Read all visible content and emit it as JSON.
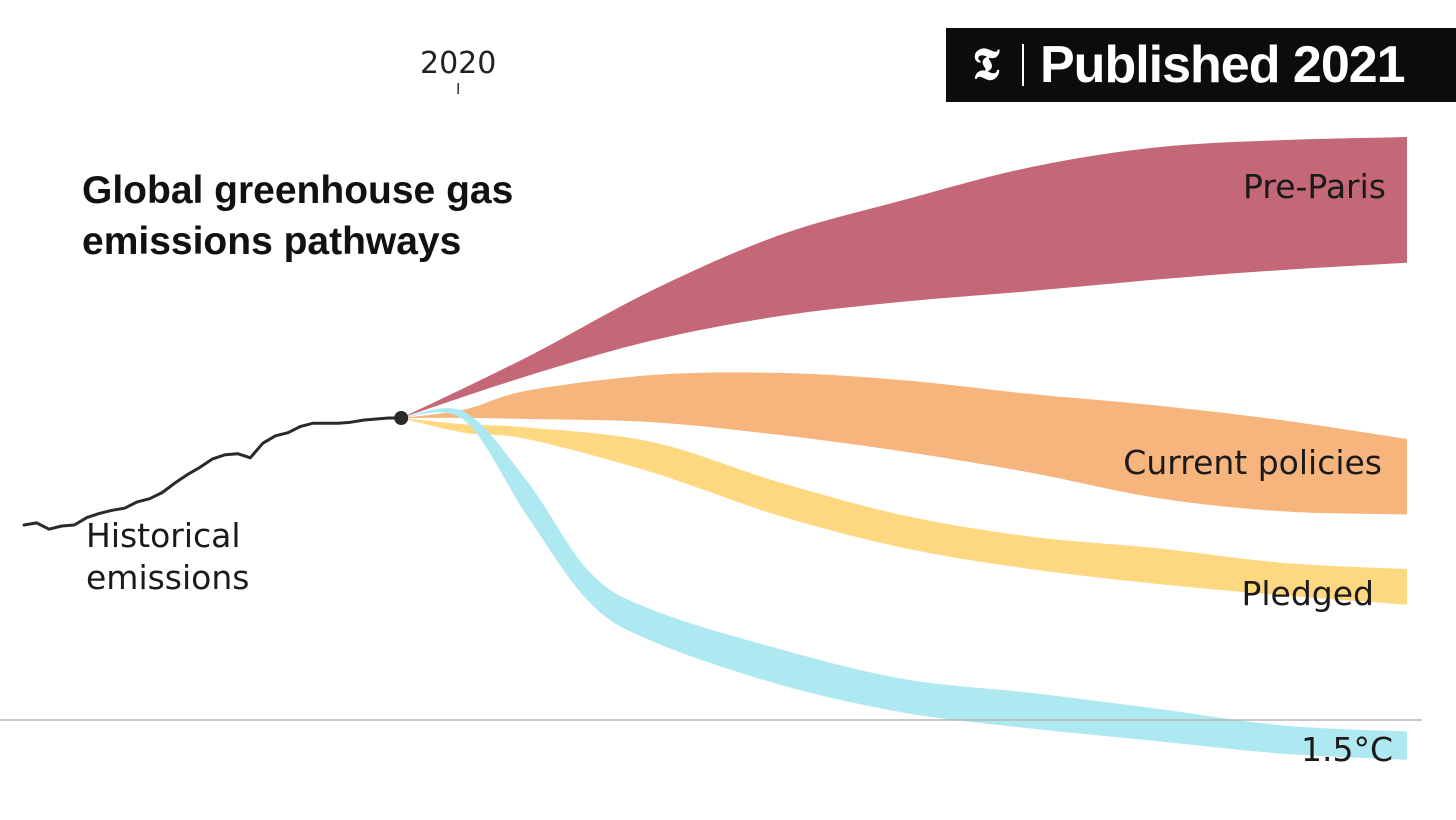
{
  "badge": {
    "logo": "𝕿",
    "text": "Published 2021"
  },
  "chart_data": {
    "type": "area",
    "title_lines": [
      "Global greenhouse gas",
      "emissions pathways"
    ],
    "x_tick": {
      "label": "2020",
      "value": 2020
    },
    "x_range": [
      1990,
      2100
    ],
    "historical": {
      "name": "Historical emissions",
      "label_lines": [
        "Historical",
        "emissions"
      ],
      "color": "#2a2a2a",
      "points": [
        [
          1990,
          38.6
        ],
        [
          1991,
          38.8
        ],
        [
          1992,
          38.2
        ],
        [
          1993,
          38.5
        ],
        [
          1994,
          38.6
        ],
        [
          1995,
          39.3
        ],
        [
          1996,
          39.7
        ],
        [
          1997,
          40.0
        ],
        [
          1998,
          40.2
        ],
        [
          1999,
          40.8
        ],
        [
          2000,
          41.1
        ],
        [
          2001,
          41.7
        ],
        [
          2002,
          42.6
        ],
        [
          2003,
          43.4
        ],
        [
          2004,
          44.1
        ],
        [
          2005,
          44.9
        ],
        [
          2006,
          45.3
        ],
        [
          2007,
          45.4
        ],
        [
          2008,
          45.0
        ],
        [
          2009,
          46.4
        ],
        [
          2010,
          47.1
        ],
        [
          2011,
          47.4
        ],
        [
          2012,
          48.0
        ],
        [
          2013,
          48.3
        ],
        [
          2014,
          48.3
        ],
        [
          2015,
          48.3
        ],
        [
          2016,
          48.4
        ],
        [
          2017,
          48.6
        ],
        [
          2018,
          48.7
        ],
        [
          2019,
          48.8
        ]
      ],
      "end_point": [
        2020,
        48.8
      ]
    },
    "series": [
      {
        "name": "Pre-Paris",
        "color": "#c46776",
        "x": [
          2020,
          2030,
          2040,
          2050,
          2060,
          2070,
          2080,
          2090,
          2100
        ],
        "low": [
          48.8,
          52.8,
          56.2,
          58.5,
          59.9,
          60.9,
          62.0,
          62.9,
          63.6
        ],
        "high": [
          48.8,
          54.6,
          61.0,
          66.2,
          69.6,
          72.7,
          74.6,
          75.3,
          75.6
        ]
      },
      {
        "name": "Current policies",
        "color": "#f5b57d",
        "x": [
          2020,
          2025,
          2030,
          2040,
          2050,
          2060,
          2070,
          2080,
          2090,
          2100
        ],
        "low": [
          48.8,
          48.8,
          48.7,
          48.4,
          47.2,
          45.6,
          43.6,
          41.2,
          39.9,
          39.6
        ],
        "high": [
          48.8,
          49.6,
          51.4,
          52.9,
          53.1,
          52.4,
          51.1,
          50.0,
          48.6,
          46.8
        ]
      },
      {
        "name": "Pledged",
        "color": "#fdd881",
        "x": [
          2020,
          2025,
          2030,
          2040,
          2050,
          2060,
          2070,
          2080,
          2090,
          2100
        ],
        "low": [
          48.8,
          47.4,
          46.8,
          43.6,
          39.5,
          36.4,
          34.4,
          33.0,
          31.9,
          31.0
        ],
        "high": [
          48.8,
          48.2,
          47.9,
          46.5,
          42.7,
          39.5,
          37.5,
          36.4,
          35.0,
          34.4
        ]
      },
      {
        "name": "1.5°C",
        "color": "#aee9f1",
        "x": [
          2020,
          2025,
          2030,
          2035,
          2040,
          2050,
          2060,
          2070,
          2080,
          2090,
          2100
        ],
        "low": [
          48.8,
          48.6,
          39.5,
          31.2,
          27.5,
          23.4,
          20.7,
          19.2,
          18.0,
          16.8,
          16.2
        ],
        "high": [
          48.8,
          49.4,
          42.8,
          34.1,
          30.5,
          26.8,
          23.9,
          22.6,
          21.1,
          19.5,
          18.9
        ]
      }
    ],
    "baseline": {
      "value": 20,
      "grid": false
    },
    "legend": "inline labels at right end of each band"
  }
}
